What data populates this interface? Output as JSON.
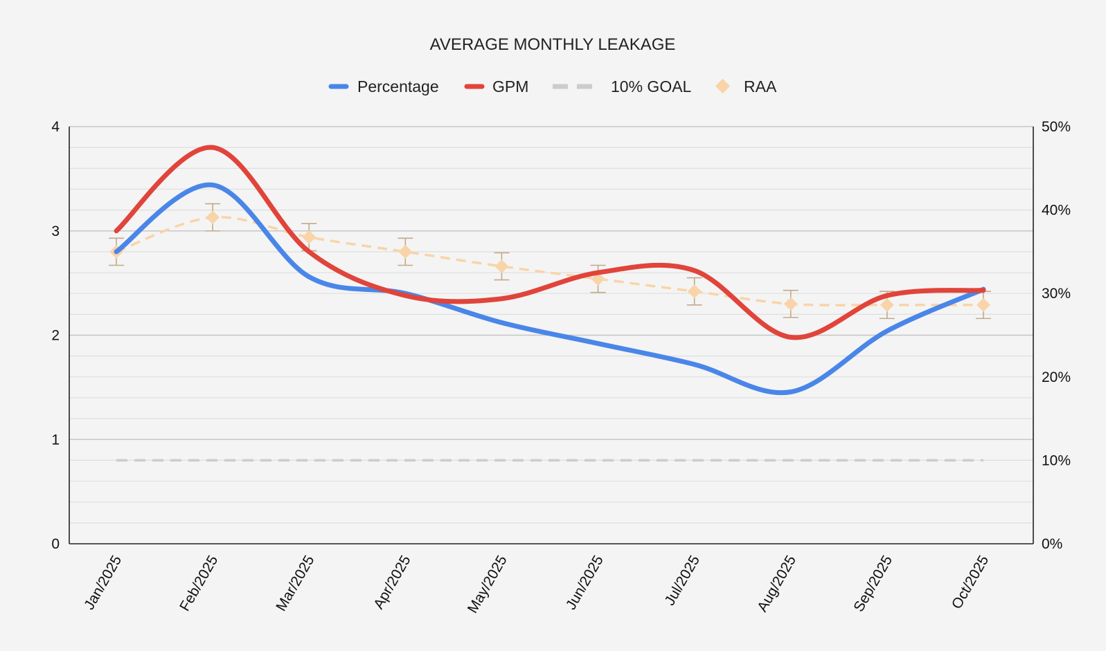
{
  "chart_data": {
    "type": "line",
    "title": "AVERAGE MONTHLY LEAKAGE",
    "categories": [
      "Jan/2025",
      "Feb/2025",
      "Mar/2025",
      "Apr/2025",
      "May/2025",
      "Jun/2025",
      "Jul/2025",
      "Aug/2025",
      "Sep/2025",
      "Oct/2025"
    ],
    "left_axis": {
      "min": 0,
      "max": 4,
      "ticks": [
        "0",
        "1",
        "2",
        "3",
        "4"
      ]
    },
    "right_axis": {
      "min": 0,
      "max": 50,
      "ticks": [
        "0%",
        "10%",
        "20%",
        "30%",
        "40%",
        "50%"
      ]
    },
    "legend": {
      "position": "top",
      "items": [
        {
          "label": "Percentage",
          "key": "percentage"
        },
        {
          "label": "GPM",
          "key": "gpm"
        },
        {
          "label": "10% GOAL",
          "key": "goal"
        },
        {
          "label": "RAA",
          "key": "raa"
        }
      ]
    },
    "series": [
      {
        "key": "percentage",
        "name": "Percentage",
        "axis": "right",
        "color": "#4a86e8",
        "style": "solid",
        "values": [
          35,
          43,
          32,
          30,
          26.5,
          24,
          21.5,
          18.2,
          25.5,
          30.5
        ]
      },
      {
        "key": "gpm",
        "name": "GPM",
        "axis": "left",
        "color": "#e0443a",
        "style": "solid",
        "values": [
          3.0,
          3.8,
          2.8,
          2.38,
          2.35,
          2.6,
          2.62,
          1.98,
          2.38,
          2.43
        ]
      },
      {
        "key": "goal",
        "name": "10% GOAL",
        "axis": "right",
        "color": "#cccccc",
        "style": "dashed",
        "values": [
          10,
          10,
          10,
          10,
          10,
          10,
          10,
          10,
          10,
          10
        ]
      },
      {
        "key": "raa",
        "name": "RAA",
        "axis": "left",
        "color": "#f8d4a8",
        "style": "dashed-markers",
        "values": [
          2.8,
          3.13,
          2.94,
          2.8,
          2.66,
          2.54,
          2.42,
          2.3,
          2.29,
          2.29
        ],
        "error": 0.13,
        "error_color": "#c4a88a"
      }
    ]
  }
}
